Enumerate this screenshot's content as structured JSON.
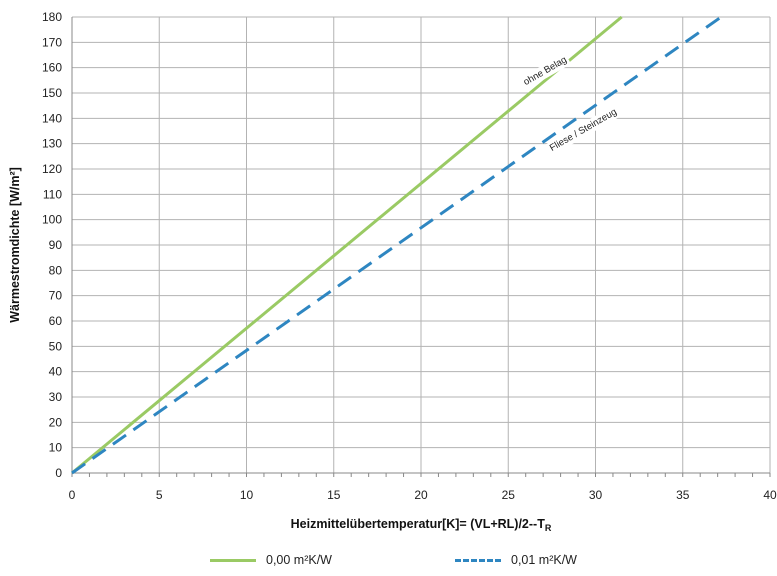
{
  "chart_data": {
    "type": "line",
    "title": "",
    "xlabel": "Heizmittelübertemperatur[K]= (VL+RL)/2--T",
    "xlabel_sub": "R",
    "ylabel": "Wärmestromdichte [W/m²]",
    "xlim": [
      0,
      40
    ],
    "ylim": [
      0,
      180
    ],
    "x_ticks": [
      0,
      5,
      10,
      15,
      20,
      25,
      30,
      35,
      40
    ],
    "y_ticks": [
      0,
      10,
      20,
      30,
      40,
      50,
      60,
      70,
      80,
      90,
      100,
      110,
      120,
      130,
      140,
      150,
      160,
      170,
      180
    ],
    "grid": true,
    "legend_position": "bottom",
    "series": [
      {
        "name": "0,00 m²K/W",
        "style": "solid",
        "color": "#9ACA64",
        "x": [
          0,
          31.5
        ],
        "y": [
          0,
          180
        ]
      },
      {
        "name": "0,01 m²K/W",
        "style": "dashed",
        "color": "#2E86C1",
        "x": [
          0,
          37.2
        ],
        "y": [
          0,
          180
        ]
      }
    ],
    "annotations": [
      {
        "text": "ohne Belag",
        "x": 26.0,
        "y": 153
      },
      {
        "text": "Fliese / Steinzeug",
        "x": 27.5,
        "y": 127
      }
    ]
  }
}
